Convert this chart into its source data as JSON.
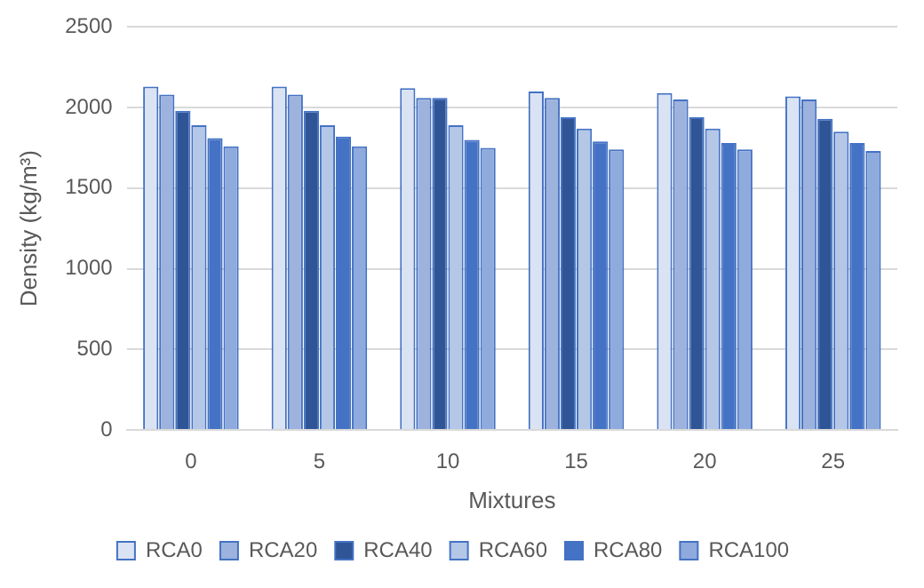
{
  "chart_data": {
    "type": "bar",
    "xlabel": "Mixtures",
    "ylabel": "Density (kg/m³)",
    "categories": [
      "0",
      "5",
      "10",
      "15",
      "20",
      "25"
    ],
    "series": [
      {
        "name": "RCA0",
        "color": "#dae3f3",
        "values": [
          2130,
          2130,
          2120,
          2100,
          2090,
          2070
        ]
      },
      {
        "name": "RCA20",
        "color": "#9db3dd",
        "values": [
          2080,
          2080,
          2060,
          2060,
          2050,
          2050
        ]
      },
      {
        "name": "RCA40",
        "color": "#2f5597",
        "values": [
          1980,
          1980,
          2060,
          1940,
          1940,
          1930
        ]
      },
      {
        "name": "RCA60",
        "color": "#b4c7e7",
        "values": [
          1890,
          1890,
          1890,
          1870,
          1870,
          1850
        ]
      },
      {
        "name": "RCA80",
        "color": "#4472c4",
        "values": [
          1810,
          1820,
          1800,
          1790,
          1780,
          1780
        ]
      },
      {
        "name": "RCA100",
        "color": "#8faadc",
        "values": [
          1760,
          1760,
          1750,
          1740,
          1740,
          1730
        ]
      }
    ],
    "ylim": [
      0,
      2500
    ],
    "yticks": [
      0,
      500,
      1000,
      1500,
      2000,
      2500
    ],
    "grid": "y",
    "legend": "bottom"
  }
}
